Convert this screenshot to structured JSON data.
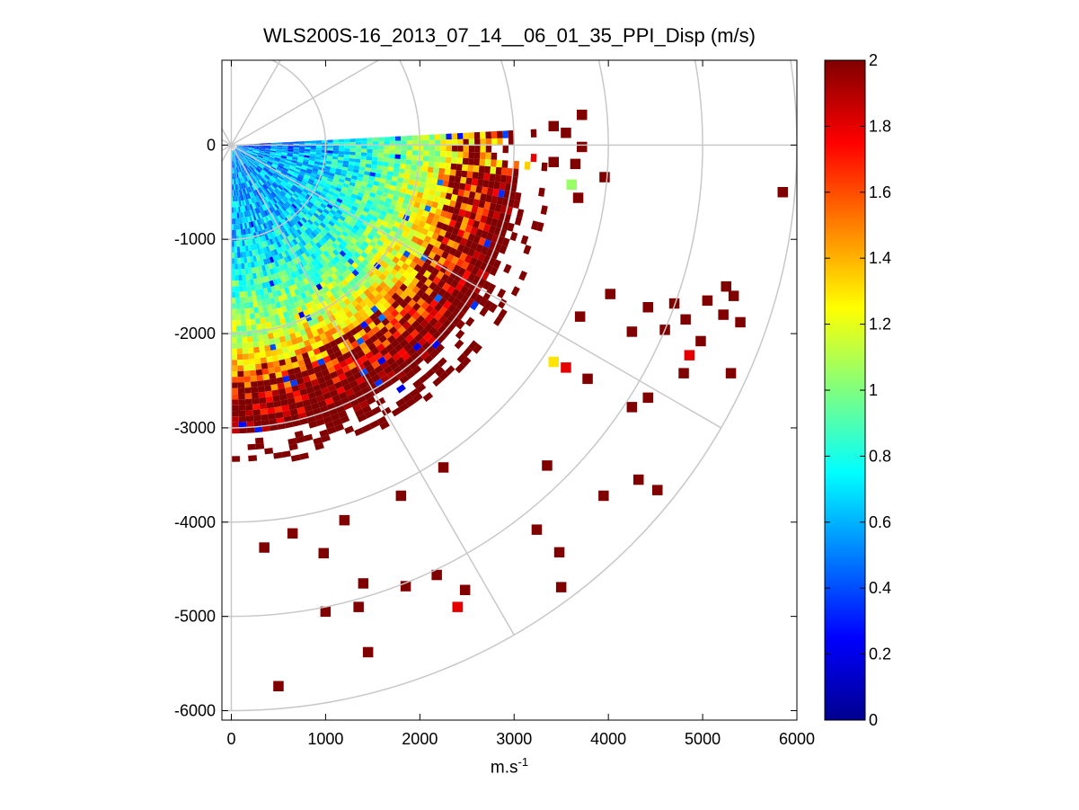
{
  "chart_data": {
    "type": "heatmap",
    "title": "WLS200S-16_2013_07_14__06_01_35_PPI_Disp (m/s)",
    "xlabel_base": "m.s",
    "xlabel_exponent": "-1",
    "xlim": [
      -100,
      6000
    ],
    "ylim": [
      -6100,
      900
    ],
    "xticks": [
      0,
      1000,
      2000,
      3000,
      4000,
      5000,
      6000
    ],
    "yticks": [
      0,
      -1000,
      -2000,
      -3000,
      -4000,
      -5000,
      -6000
    ],
    "grid": "polar",
    "range_rings": [
      1000,
      2000,
      3000,
      4000,
      5000,
      6000
    ],
    "azimuth_spokes_deg": [
      0,
      30,
      60,
      90,
      120,
      150,
      180,
      210,
      240,
      270,
      300,
      330
    ],
    "sector_deg": [
      -3,
      90
    ],
    "colorbar": {
      "min": 0,
      "max": 2,
      "ticks": [
        0,
        0.2,
        0.4,
        0.6,
        0.8,
        1,
        1.2,
        1.4,
        1.6,
        1.8,
        2
      ],
      "colormap": "jet"
    },
    "cells": [
      {
        "x": 3720,
        "y": 320,
        "v": 2
      },
      {
        "x": 3420,
        "y": 200,
        "v": 2
      },
      {
        "x": 3550,
        "y": 130,
        "v": 2
      },
      {
        "x": 3720,
        "y": -20,
        "v": 2
      },
      {
        "x": 3650,
        "y": -200,
        "v": 2
      },
      {
        "x": 3420,
        "y": -180,
        "v": 2
      },
      {
        "x": 3960,
        "y": -340,
        "v": 2
      },
      {
        "x": 3680,
        "y": -560,
        "v": 2
      },
      {
        "x": 3610,
        "y": -420,
        "v": 1.05
      },
      {
        "x": 5850,
        "y": -500,
        "v": 2
      },
      {
        "x": 4020,
        "y": -1580,
        "v": 2
      },
      {
        "x": 4420,
        "y": -1720,
        "v": 2
      },
      {
        "x": 4700,
        "y": -1680,
        "v": 2
      },
      {
        "x": 4820,
        "y": -1850,
        "v": 2
      },
      {
        "x": 5050,
        "y": -1650,
        "v": 2
      },
      {
        "x": 5250,
        "y": -1500,
        "v": 2
      },
      {
        "x": 5330,
        "y": -1600,
        "v": 2
      },
      {
        "x": 5220,
        "y": -1800,
        "v": 2
      },
      {
        "x": 5400,
        "y": -1880,
        "v": 2
      },
      {
        "x": 3700,
        "y": -1820,
        "v": 2
      },
      {
        "x": 4250,
        "y": -1980,
        "v": 2
      },
      {
        "x": 4600,
        "y": -1960,
        "v": 2
      },
      {
        "x": 4980,
        "y": -2080,
        "v": 2
      },
      {
        "x": 4860,
        "y": -2230,
        "v": 1.8
      },
      {
        "x": 4800,
        "y": -2420,
        "v": 2
      },
      {
        "x": 5300,
        "y": -2420,
        "v": 2
      },
      {
        "x": 3420,
        "y": -2300,
        "v": 1.3
      },
      {
        "x": 3550,
        "y": -2360,
        "v": 1.8
      },
      {
        "x": 3780,
        "y": -2480,
        "v": 2
      },
      {
        "x": 4250,
        "y": -2780,
        "v": 2
      },
      {
        "x": 4420,
        "y": -2680,
        "v": 2
      },
      {
        "x": 3350,
        "y": -3400,
        "v": 2
      },
      {
        "x": 4320,
        "y": -3550,
        "v": 2
      },
      {
        "x": 4520,
        "y": -3660,
        "v": 2
      },
      {
        "x": 3950,
        "y": -3720,
        "v": 2
      },
      {
        "x": 3240,
        "y": -4080,
        "v": 2
      },
      {
        "x": 3480,
        "y": -4320,
        "v": 2
      },
      {
        "x": 3500,
        "y": -4690,
        "v": 2
      },
      {
        "x": 2480,
        "y": -4720,
        "v": 2
      },
      {
        "x": 2400,
        "y": -4900,
        "v": 1.8
      },
      {
        "x": 2180,
        "y": -4560,
        "v": 2
      },
      {
        "x": 1850,
        "y": -4680,
        "v": 2
      },
      {
        "x": 1400,
        "y": -4650,
        "v": 2
      },
      {
        "x": 1350,
        "y": -4900,
        "v": 2
      },
      {
        "x": 1000,
        "y": -4950,
        "v": 2
      },
      {
        "x": 1450,
        "y": -5380,
        "v": 2
      },
      {
        "x": 500,
        "y": -5740,
        "v": 2
      },
      {
        "x": 350,
        "y": -4270,
        "v": 2
      },
      {
        "x": 650,
        "y": -4120,
        "v": 2
      },
      {
        "x": 980,
        "y": -4330,
        "v": 2
      },
      {
        "x": 1200,
        "y": -3980,
        "v": 2
      },
      {
        "x": 2250,
        "y": -3420,
        "v": 2
      },
      {
        "x": 1800,
        "y": -3720,
        "v": 2
      }
    ]
  }
}
